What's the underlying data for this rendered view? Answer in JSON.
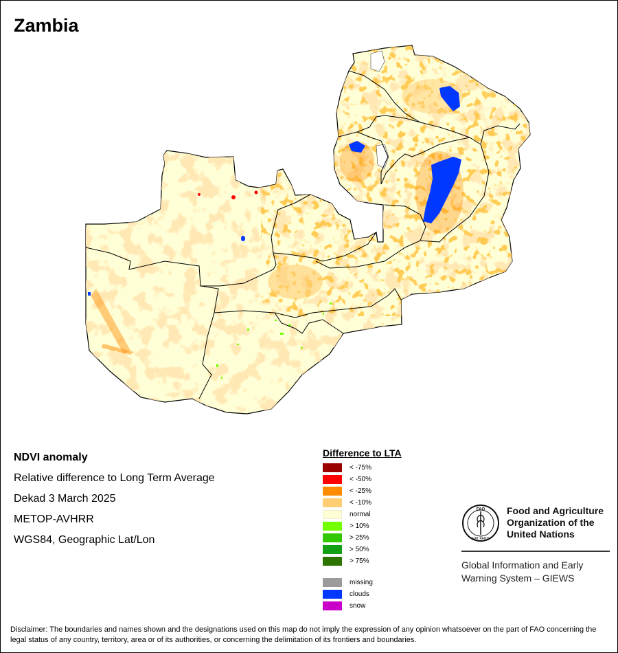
{
  "title": "Zambia",
  "info": {
    "product": "NDVI anomaly",
    "description": "Relative difference to Long Term Average",
    "period": "Dekad 3 March 2025",
    "sensor": "METOP-AVHRR",
    "projection": "WGS84, Geographic Lat/Lon"
  },
  "legend": {
    "title": "Difference to LTA",
    "classes": [
      {
        "label": "< -75%",
        "color": "#9b0000"
      },
      {
        "label": "< -50%",
        "color": "#ff0000"
      },
      {
        "label": "< -25%",
        "color": "#ff8c00"
      },
      {
        "label": "< -10%",
        "color": "#ffcd73"
      },
      {
        "label": "normal",
        "color": "#ffffd7"
      },
      {
        "label": "> 10%",
        "color": "#73ff00"
      },
      {
        "label": "> 25%",
        "color": "#32c800"
      },
      {
        "label": "> 50%",
        "color": "#14a014"
      },
      {
        "label": "> 75%",
        "color": "#2d7300"
      }
    ],
    "special": [
      {
        "label": "missing",
        "color": "#9b9b9b"
      },
      {
        "label": "clouds",
        "color": "#0038ff"
      },
      {
        "label": "snow",
        "color": "#c800c8"
      }
    ]
  },
  "organization": {
    "line1": "Food and Agriculture",
    "line2": "Organization of the",
    "line3": "United Nations",
    "logo_text": "FAO",
    "logo_motto": "FIAT PANIS",
    "system_line1": "Global Information and Early",
    "system_line2": "Warning System – GIEWS"
  },
  "disclaimer": "Disclaimer: The boundaries and names shown and the designations used on this map do not imply the expression of any opinion whatsoever on the part of FAO concerning the legal status of any country, territory, area or of its authorities, or concerning the delimitation of its frontiers and boundaries.",
  "colors": {
    "normal": "#ffffd7",
    "decline_10": "#ffcd73",
    "decline_25": "#ff8c00",
    "decline_50": "#ff0000",
    "decline_75": "#9b0000",
    "clouds": "#0038ff",
    "increase_10": "#73ff00",
    "increase_25": "#32c800",
    "water": "#ffffff"
  }
}
